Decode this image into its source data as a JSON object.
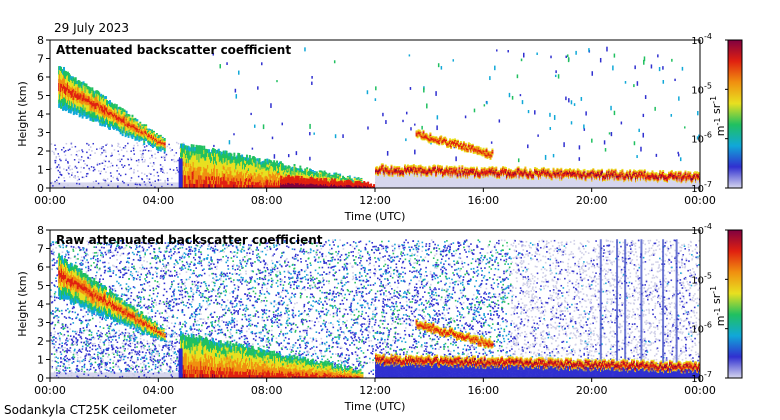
{
  "date": "29 July 2023",
  "footer": "Sodankyla CT25K ceilometer",
  "chart_data": [
    {
      "type": "heatmap",
      "title": "Attenuated backscatter coefficient",
      "xlabel": "Time (UTC)",
      "ylabel": "Height (km)",
      "xticks": [
        "00:00",
        "04:00",
        "08:00",
        "12:00",
        "16:00",
        "20:00",
        "00:00"
      ],
      "xlim_hours": [
        0,
        24
      ],
      "yticks": [
        "0",
        "1",
        "2",
        "3",
        "4",
        "5",
        "6",
        "7",
        "8"
      ],
      "ylim": [
        0,
        8
      ],
      "colorbar": {
        "label": "m-1 sr-1",
        "scale": "log",
        "range": [
          1e-07,
          0.0001
        ],
        "ticks": [
          "10-7",
          "10-6",
          "10-5",
          "10-4"
        ]
      },
      "colors": [
        "#d6d6ee",
        "#3030d0",
        "#10a8d8",
        "#20c060",
        "#e8e020",
        "#f09010",
        "#e02010",
        "#800040"
      ],
      "features": [
        {
          "name": "high cloud, descending",
          "start_h": 0.3,
          "end_h": 4.2,
          "top_km": [
            6.6,
            2.6
          ],
          "base_km": [
            4.4,
            2.0
          ]
        },
        {
          "name": "boundary layer",
          "start_h": 4.8,
          "end_h": 11.5,
          "top_km": [
            2.4,
            0.4
          ]
        },
        {
          "name": "surface aerosol",
          "start_h": 8.5,
          "end_h": 12.0,
          "top_km": [
            0.6,
            0.2
          ]
        },
        {
          "name": "mid-level cloud",
          "start_h": 13.5,
          "end_h": 16.3,
          "top_km": [
            3.1,
            2.0
          ]
        },
        {
          "name": "low cloud",
          "start_h": 12.0,
          "end_h": 24.0,
          "top_km": [
            1.2,
            0.8
          ]
        }
      ]
    },
    {
      "type": "heatmap",
      "title": "Raw attenuated backscatter coefficient",
      "xlabel": "Time (UTC)",
      "ylabel": "Height (km)",
      "xticks": [
        "00:00",
        "04:00",
        "08:00",
        "12:00",
        "16:00",
        "20:00",
        "00:00"
      ],
      "xlim_hours": [
        0,
        24
      ],
      "yticks": [
        "0",
        "1",
        "2",
        "3",
        "4",
        "5",
        "6",
        "7",
        "8"
      ],
      "ylim": [
        0,
        8
      ],
      "colorbar": {
        "label": "m-1 sr-1",
        "scale": "log",
        "range": [
          1e-07,
          0.0001
        ],
        "ticks": [
          "10-7",
          "10-6",
          "10-5",
          "10-4"
        ]
      },
      "noise_top_km": 7.5,
      "features": [
        {
          "name": "high cloud, descending",
          "start_h": 0.3,
          "end_h": 4.2,
          "top_km": [
            6.6,
            2.6
          ],
          "base_km": [
            4.4,
            2.0
          ]
        },
        {
          "name": "boundary layer",
          "start_h": 4.8,
          "end_h": 11.5,
          "top_km": [
            2.4,
            0.4
          ]
        },
        {
          "name": "mid-level cloud",
          "start_h": 13.5,
          "end_h": 16.3,
          "top_km": [
            3.1,
            2.0
          ]
        },
        {
          "name": "low cloud",
          "start_h": 12.0,
          "end_h": 24.0,
          "top_km": [
            1.2,
            0.8
          ]
        }
      ]
    }
  ]
}
